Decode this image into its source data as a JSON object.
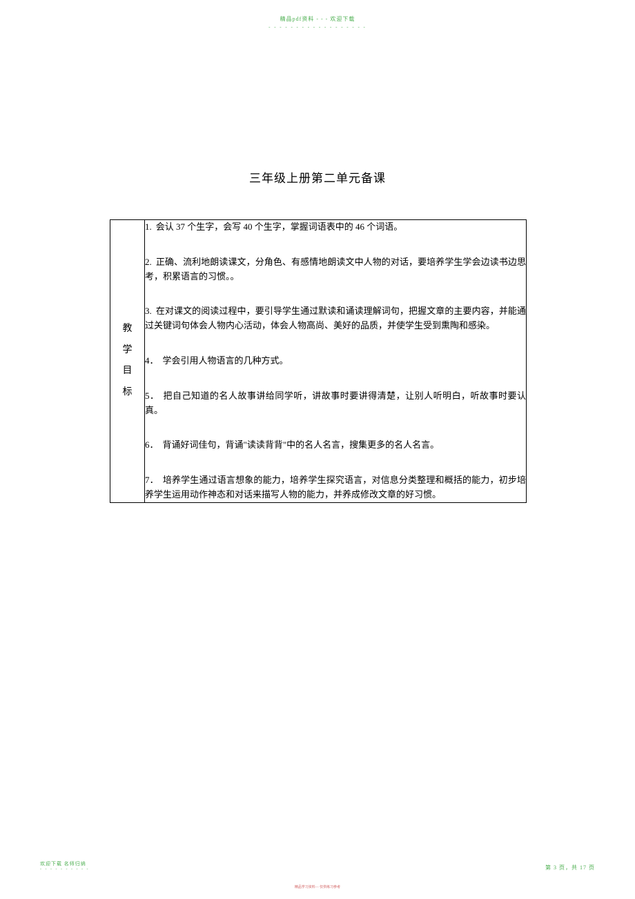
{
  "header": {
    "watermark_text": "精品pdf资料 - - - 欢迎下载",
    "watermark_dashes": "- - - - - - - - - - - - - - - - - -"
  },
  "title": "三年级上册第二单元备课",
  "table": {
    "label_chars": [
      "教",
      "学",
      "目",
      "标"
    ],
    "objectives": [
      {
        "num": "1.",
        "text": "会认 37 个生字，会写 40 个生字，掌握词语表中的  46 个词语。"
      },
      {
        "num": "2.",
        "text": "正确、流利地朗读课文，分角色、有感情地朗读文中人物的对话，要培养学生学会边读书边思考，积累语言的习惯。。"
      },
      {
        "num": "3.",
        "text": "在对课文的阅读过程中，要引导学生通过默读和诵读理解词句，把握文章的主要内容，并能通过关键词句体会人物内心活动，体会人物高尚、美好的品质，并使学生受到熏陶和感染。"
      },
      {
        "num": "4．",
        "text": "学会引用人物语言的几种方式。"
      },
      {
        "num": "5．",
        "text": "把自己知道的名人故事讲给同学听，讲故事时要讲得清楚，让别人听明白，听故事时要认真。"
      },
      {
        "num": "6．",
        "text": "背诵好词佳句，背诵\"读读背背\"中的名人名言，搜集更多的名人名言。"
      },
      {
        "num": "7．",
        "text": "培养学生通过语言想象的能力，培养学生探究语言，对信息分类整理和概括的能力，初步培养学生运用动作神态和对话来描写人物的能力，并养成修改文章的好习惯。"
      }
    ]
  },
  "footer": {
    "left_text": "欢迎下载  名师归纳",
    "left_dashes": "- - - - - - - - - -",
    "center_text": "精品学习资料—   仅供练习参考",
    "right_text": "第 3 页，共 17 页"
  }
}
